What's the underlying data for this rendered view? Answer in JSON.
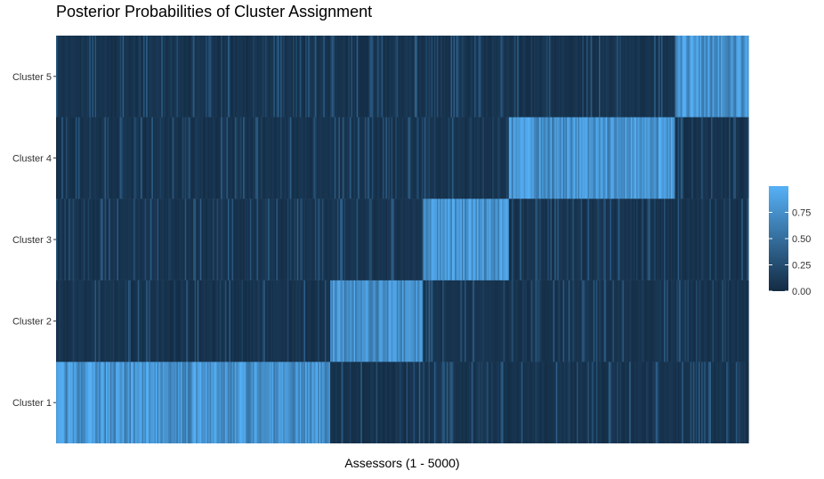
{
  "chart_data": {
    "type": "heatmap",
    "title": "Posterior Probabilities of Cluster Assignment",
    "xlabel": "Assessors (1 - 5000)",
    "ylabel": "",
    "x_range": [
      1,
      5000
    ],
    "rows": [
      "Cluster 1",
      "Cluster 2",
      "Cluster 3",
      "Cluster 4",
      "Cluster 5"
    ],
    "legend": {
      "position": "right",
      "ticks": [
        "0.00",
        "0.25",
        "0.50",
        "0.75"
      ],
      "tick_values": [
        0,
        0.25,
        0.5,
        0.75
      ],
      "range": [
        0,
        1
      ],
      "color_low": "#132B43",
      "color_high": "#56B1F7"
    },
    "blocks": [
      {
        "assessors": [
          1,
          1975
        ],
        "assigned": "Cluster 1"
      },
      {
        "assessors": [
          1976,
          2645
        ],
        "assigned": "Cluster 2"
      },
      {
        "assessors": [
          2646,
          3265
        ],
        "assigned": "Cluster 3"
      },
      {
        "assessors": [
          3266,
          4470
        ],
        "assigned": "Cluster 4"
      },
      {
        "assessors": [
          4471,
          5000
        ],
        "assigned": "Cluster 5"
      }
    ],
    "typical_probability": {
      "assigned": 0.8,
      "other": 0.05
    }
  }
}
